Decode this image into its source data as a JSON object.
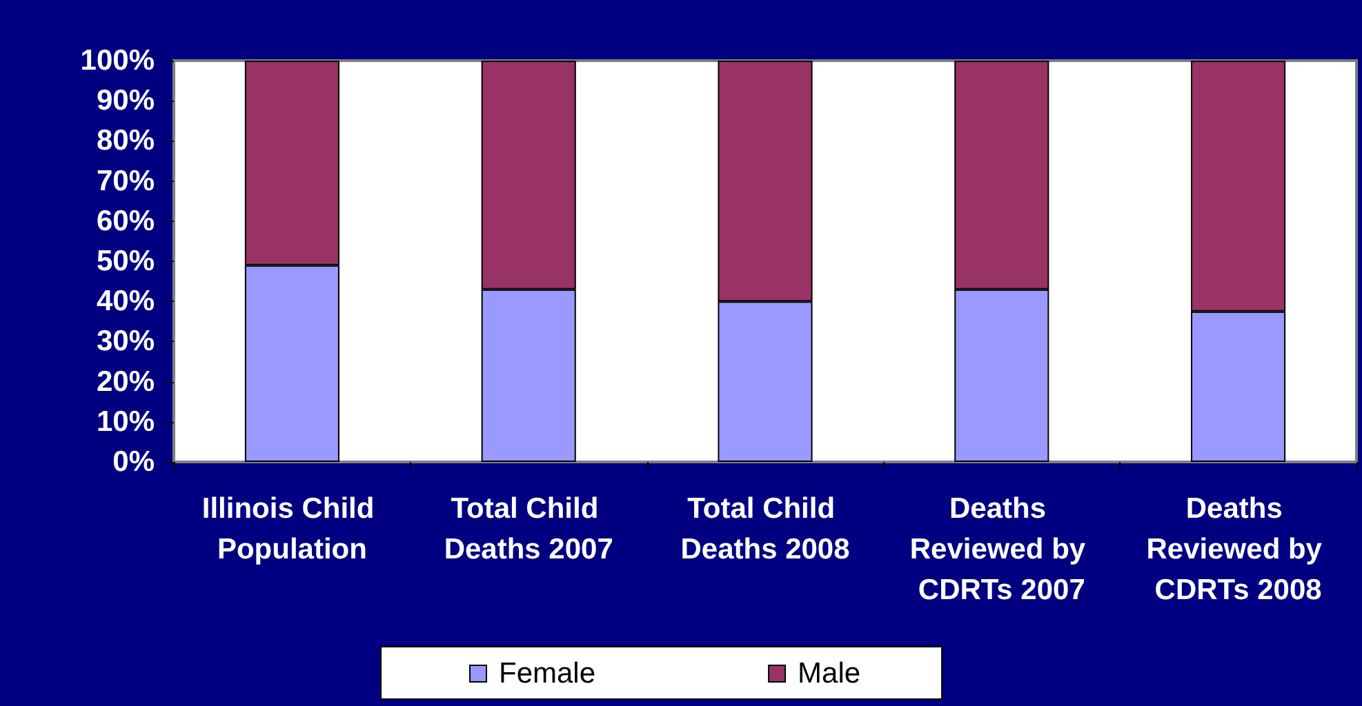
{
  "chart_data": {
    "type": "bar",
    "stacked": true,
    "categories": [
      "Illinois Child Population",
      "Total Child Deaths 2007",
      "Total Child Deaths 2008",
      "Deaths Reviewed by CDRTs 2007",
      "Deaths Reviewed by CDRTs 2008"
    ],
    "series": [
      {
        "name": "Female",
        "color": "#9999ff",
        "values": [
          49,
          43,
          40,
          43,
          37.5
        ]
      },
      {
        "name": "Male",
        "color": "#993366",
        "values": [
          51,
          57,
          60,
          57,
          62.5
        ]
      }
    ],
    "ylim": [
      0,
      100
    ],
    "yticks": [
      {
        "value": 0,
        "label": "0%"
      },
      {
        "value": 10,
        "label": "10%"
      },
      {
        "value": 20,
        "label": "20%"
      },
      {
        "value": 30,
        "label": "30%"
      },
      {
        "value": 40,
        "label": "40%"
      },
      {
        "value": 50,
        "label": "50%"
      },
      {
        "value": 60,
        "label": "60%"
      },
      {
        "value": 70,
        "label": "70%"
      },
      {
        "value": 80,
        "label": "80%"
      },
      {
        "value": 90,
        "label": "90%"
      },
      {
        "value": 100,
        "label": "100%"
      }
    ],
    "grid": false,
    "legend": "bottom"
  }
}
